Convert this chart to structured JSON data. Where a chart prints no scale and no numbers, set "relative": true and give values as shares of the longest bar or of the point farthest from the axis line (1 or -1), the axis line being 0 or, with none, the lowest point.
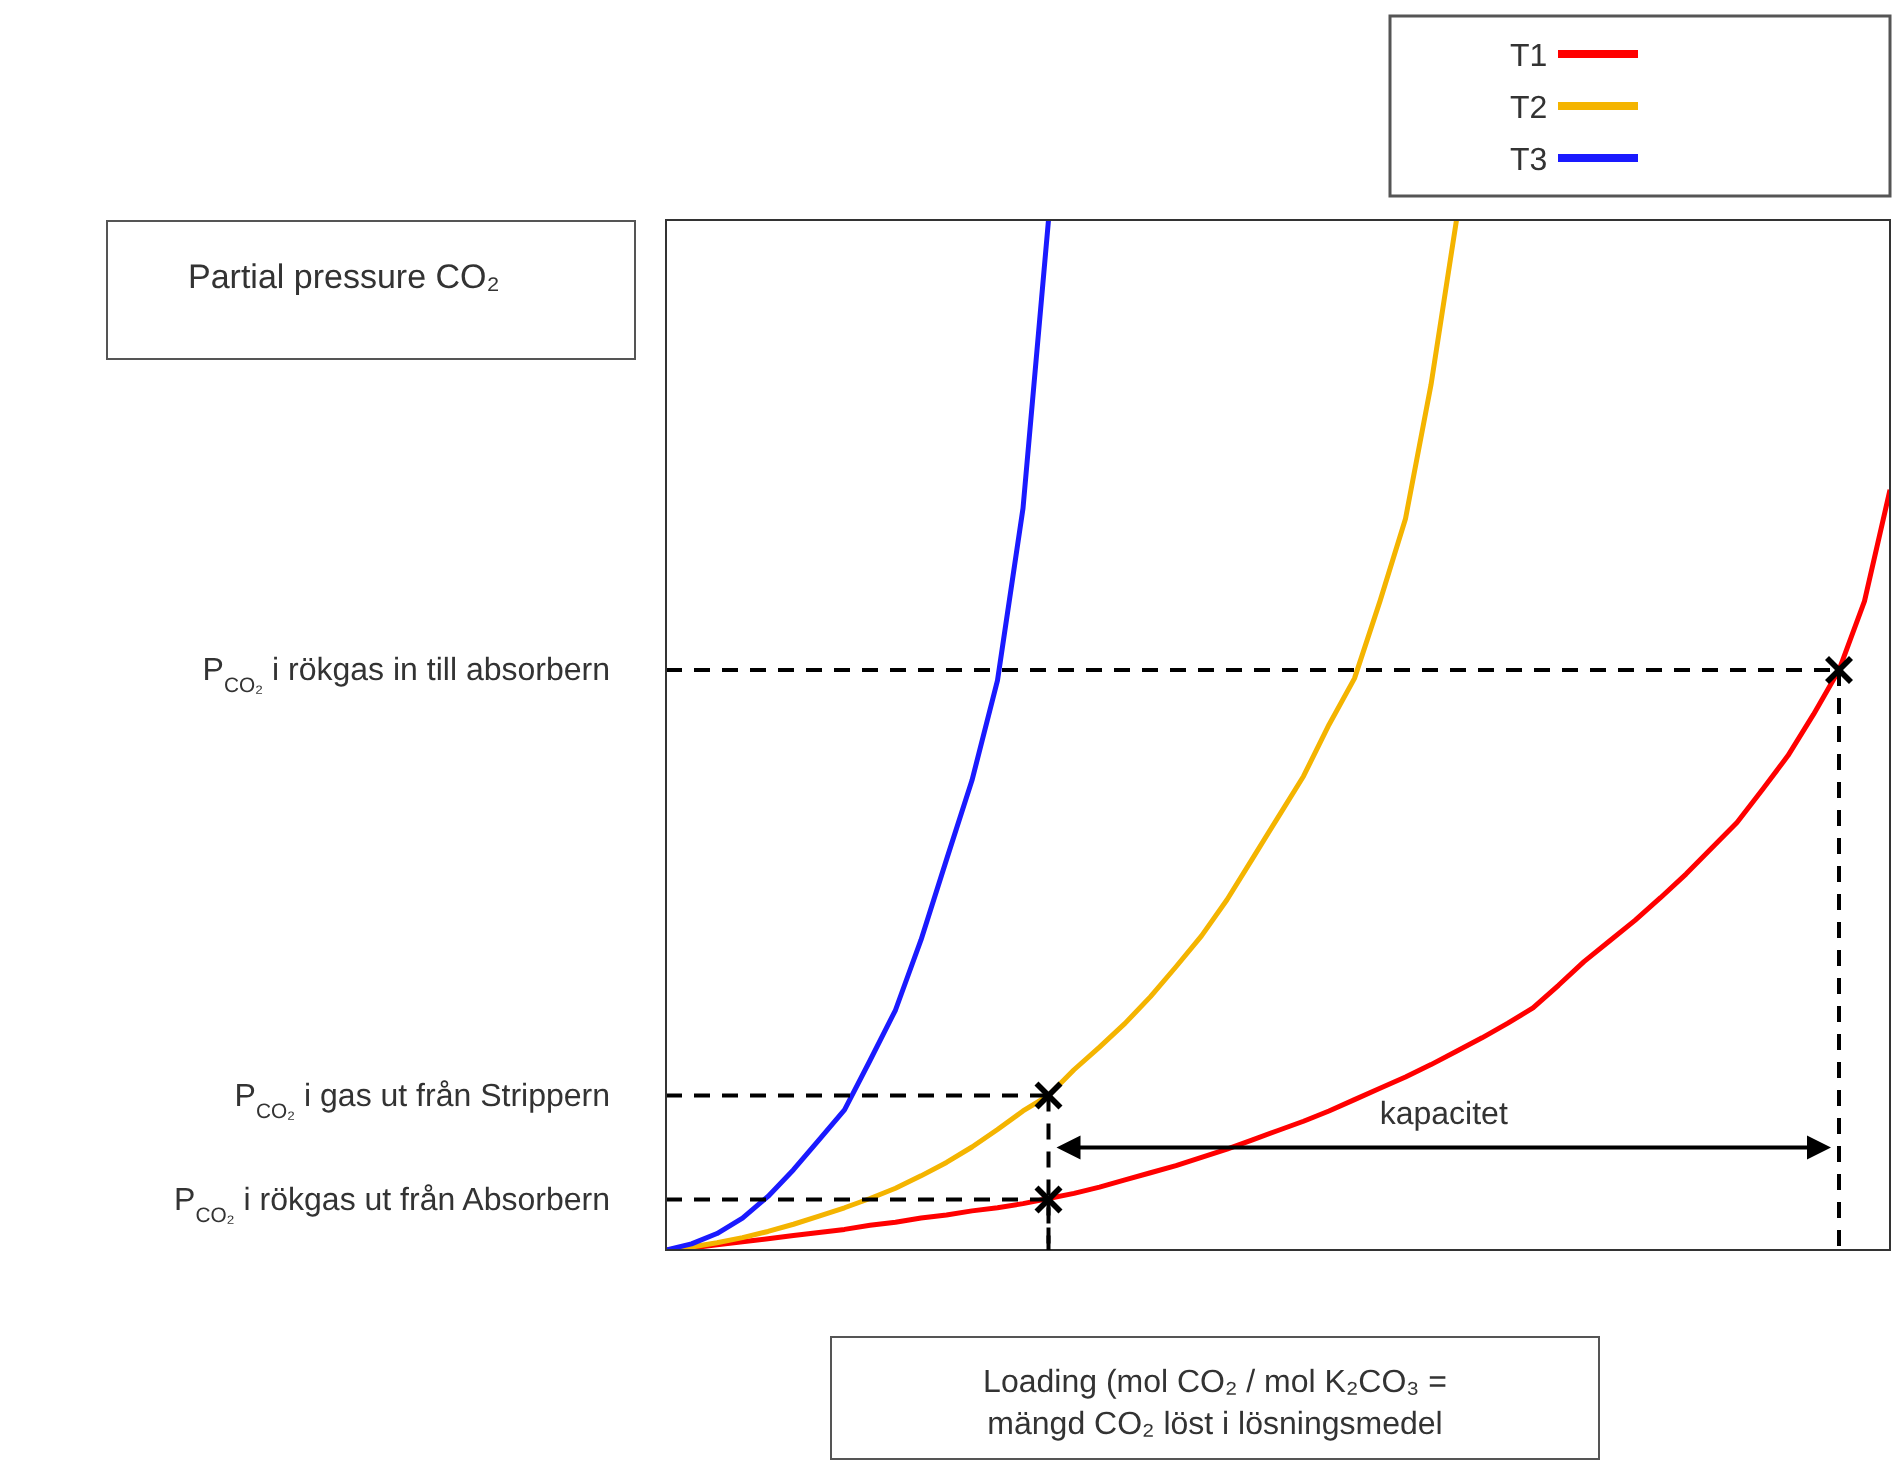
{
  "chart_data": {
    "type": "line",
    "relative": true,
    "legend": "top right",
    "marker": "none",
    "grid": false,
    "ylabel": "Partial pressure CO₂",
    "xlabel": "Loading (mol CO₂ / mol K₂CO₃ = mängd CO₂ löst i lösningsmedel",
    "categories": [
      null,
      null,
      null,
      null,
      null,
      null,
      null,
      null,
      null,
      null,
      null,
      null,
      null,
      null,
      null,
      null,
      null,
      null,
      null,
      null,
      null,
      null,
      null,
      null,
      null,
      null,
      null,
      null,
      null,
      null,
      null,
      null,
      null,
      null,
      null,
      null,
      null,
      null,
      null,
      null,
      null,
      null,
      null,
      null,
      null,
      null,
      null,
      null,
      null
    ],
    "series": [
      {
        "name": "T1",
        "color": "#ff0000",
        "values": [
          0,
          0.002,
          0.005,
          0.008,
          0.011,
          0.014,
          0.017,
          0.02,
          0.024,
          0.027,
          0.031,
          0.034,
          0.038,
          0.041,
          0.045,
          0.05,
          0.055,
          0.061,
          0.068,
          0.075,
          0.082,
          0.09,
          0.098,
          0.107,
          0.116,
          0.125,
          0.135,
          0.146,
          0.157,
          0.168,
          0.18,
          0.193,
          0.206,
          0.22,
          0.235,
          0.257,
          0.28,
          0.3,
          0.32,
          0.342,
          0.365,
          0.39,
          0.415,
          0.447,
          0.48,
          0.52,
          0.563,
          0.63,
          0.738
        ]
      },
      {
        "name": "T2",
        "color": "#f4b400",
        "values": [
          0,
          0.003,
          0.007,
          0.012,
          0.018,
          0.025,
          0.033,
          0.041,
          0.05,
          0.06,
          0.072,
          0.085,
          0.1,
          0.117,
          0.135,
          0.15,
          0.175,
          0.197,
          0.22,
          0.246,
          0.275,
          0.305,
          0.34,
          0.38,
          0.42,
          0.46,
          0.51,
          0.555,
          0.63,
          0.71,
          0.84,
          1,
          null,
          null,
          null,
          null,
          null,
          null,
          null,
          null,
          null,
          null,
          null,
          null,
          null,
          null,
          null,
          null,
          null
        ]
      },
      {
        "name": "T3",
        "color": "#1a1aff",
        "values": [
          0,
          0.006,
          0.016,
          0.031,
          0.052,
          0.078,
          0.107,
          0.136,
          0.184,
          0.233,
          0.301,
          0.379,
          0.456,
          0.553,
          0.72,
          1,
          null,
          null,
          null,
          null,
          null,
          null,
          null,
          null,
          null,
          null,
          null,
          null,
          null,
          null,
          null,
          null,
          null,
          null,
          null,
          null,
          null,
          null,
          null,
          null,
          null,
          null,
          null,
          null,
          null,
          null,
          null,
          null,
          null
        ]
      },
      {
        "line_style": "dashed",
        "color": "#000000",
        "values": [
          0.563,
          0.563,
          0.563,
          0.563,
          0.563,
          0.563,
          0.563,
          0.563,
          0.563,
          0.563,
          0.563,
          0.563,
          0.563,
          0.563,
          0.563,
          0.563,
          0.563,
          0.563,
          0.563,
          0.563,
          0.563,
          0.563,
          0.563,
          0.563,
          0.563,
          0.563,
          0.563,
          0.563,
          0.563,
          0.563,
          0.563,
          0.563,
          0.563,
          0.563,
          0.563,
          0.563,
          0.563,
          0.563,
          0.563,
          0.563,
          0.563,
          0.563,
          0.563,
          0.563,
          0.563,
          0.563,
          0.563,
          null,
          null
        ]
      },
      {
        "line_style": "dashed",
        "color": "#000000",
        "values": [
          0.15,
          0.15,
          0.15,
          0.15,
          0.15,
          0.15,
          0.15,
          0.15,
          0.15,
          0.15,
          0.15,
          0.15,
          0.15,
          0.15,
          0.15,
          0.15,
          null,
          null,
          null,
          null,
          null,
          null,
          null,
          null,
          null,
          null,
          null,
          null,
          null,
          null,
          null,
          null,
          null,
          null,
          null,
          null,
          null,
          null,
          null,
          null,
          null,
          null,
          null,
          null,
          null,
          null,
          null,
          null,
          null
        ]
      },
      {
        "line_style": "dashed",
        "color": "#000000",
        "values": [
          0.049,
          0.049,
          0.049,
          0.049,
          0.049,
          0.049,
          0.049,
          0.049,
          0.049,
          0.049,
          0.049,
          0.049,
          0.049,
          0.049,
          0.049,
          0.049,
          null,
          null,
          null,
          null,
          null,
          null,
          null,
          null,
          null,
          null,
          null,
          null,
          null,
          null,
          null,
          null,
          null,
          null,
          null,
          null,
          null,
          null,
          null,
          null,
          null,
          null,
          null,
          null,
          null,
          null,
          null,
          null,
          null
        ]
      }
    ],
    "annotations": [
      "P$_{CO₂}$ i rökgas in till absorbern",
      "P$_{CO₂}$ i gas ut från  Strippern",
      "P$_{CO₂}$ i rökgas ut från Absorbern",
      "kapacitet"
    ]
  }
}
